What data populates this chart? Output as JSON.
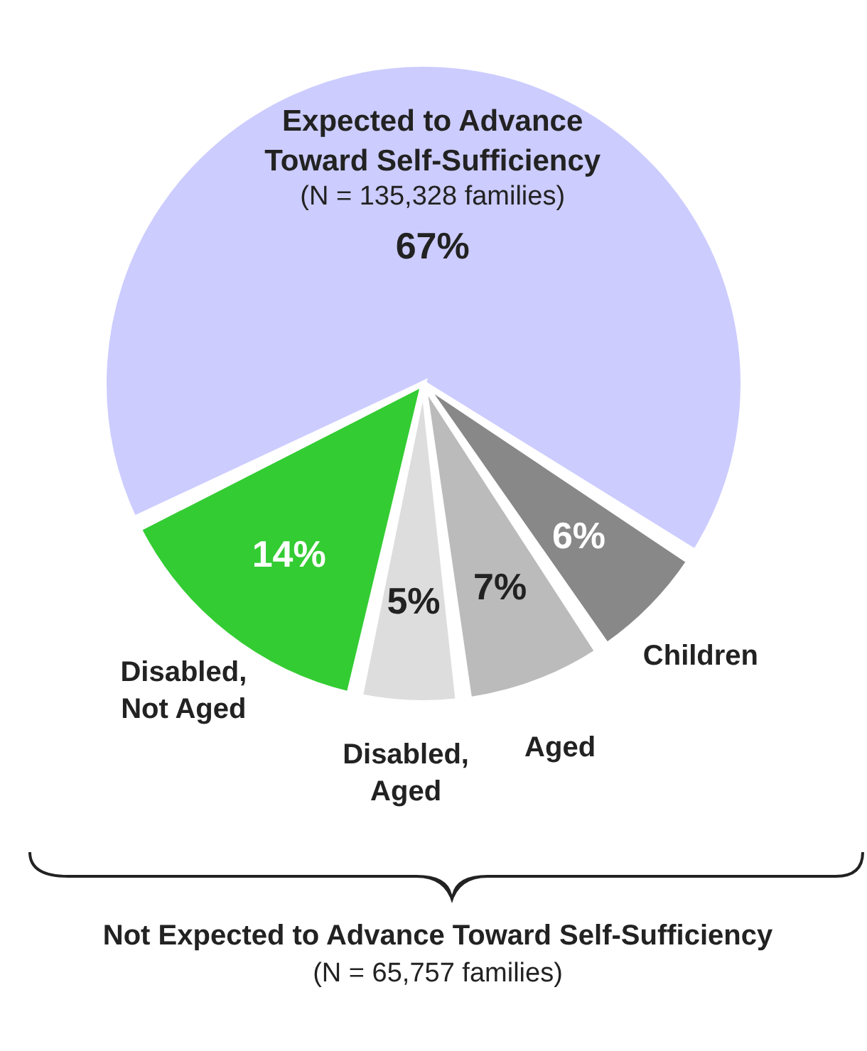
{
  "chart_data": {
    "type": "pie",
    "categories": [
      "Expected to Advance Toward Self-Sufficiency",
      "Disabled, Not Aged",
      "Disabled, Aged",
      "Aged",
      "Children"
    ],
    "values": [
      67,
      14,
      5,
      7,
      6
    ],
    "value_labels": [
      "67%",
      "14%",
      "5%",
      "7%",
      "6%"
    ],
    "colors": [
      "#ccccff",
      "#33cc33",
      "#dddddd",
      "#bbbbbb",
      "#888888"
    ],
    "annotations": [
      "(N = 135,328 families)",
      "Not Expected to Advance Toward Self-Sufficiency",
      "(N = 65,757 families)"
    ]
  }
}
